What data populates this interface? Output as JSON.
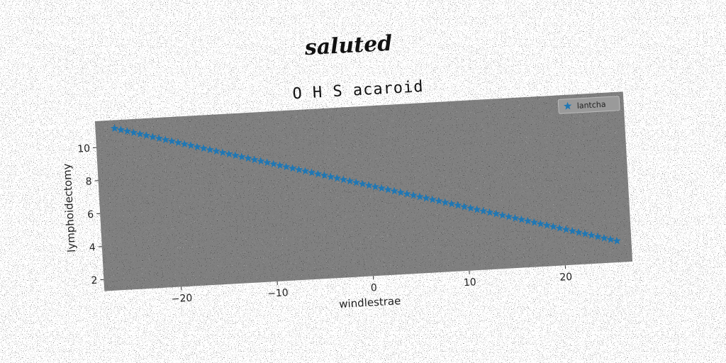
{
  "chart_data": {
    "type": "scatter",
    "suptitle": "saluted",
    "title": "O H S acaroid",
    "xlabel": "windlestrae",
    "ylabel": "lymphoidectomy",
    "xlim": [
      -28,
      27
    ],
    "ylim": [
      1.3,
      11.6
    ],
    "xticks": [
      -20,
      -10,
      0,
      10,
      20
    ],
    "xtick_labels": [
      "−20",
      "−10",
      "0",
      "10",
      "20"
    ],
    "yticks": [
      2,
      4,
      6,
      8,
      10
    ],
    "ytick_labels": [
      "2",
      "4",
      "6",
      "8",
      "10"
    ],
    "grid": false,
    "legend_position": "top-right",
    "series": [
      {
        "name": "lantcha",
        "marker": "star",
        "color": "#1f77b4",
        "x_start": -26,
        "x_end": 25.5,
        "y_start": 11.1,
        "y_end": 2.6,
        "point_count": 80
      }
    ]
  }
}
